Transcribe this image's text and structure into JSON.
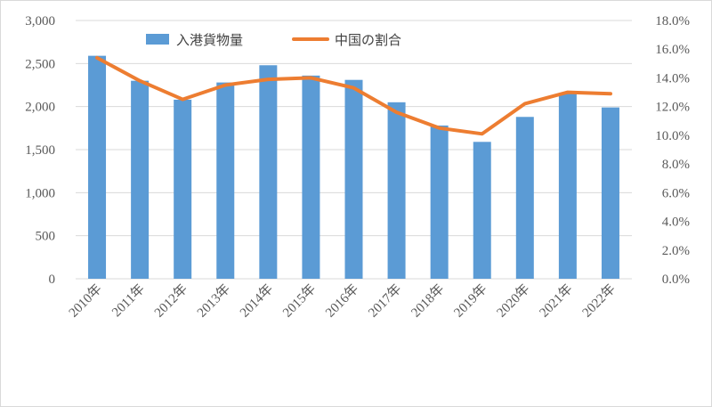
{
  "chart_data": {
    "type": "bar",
    "categories": [
      "2010年",
      "2011年",
      "2012年",
      "2013年",
      "2014年",
      "2015年",
      "2016年",
      "2017年",
      "2018年",
      "2019年",
      "2020年",
      "2021年",
      "2022年"
    ],
    "series": [
      {
        "name": "入港貨物量",
        "type": "bar",
        "axis": "left",
        "color": "#5b9bd5",
        "values": [
          2590,
          2300,
          2080,
          2280,
          2480,
          2360,
          2310,
          2050,
          1780,
          1590,
          1880,
          2150,
          1990
        ]
      },
      {
        "name": "中国の割合",
        "type": "line",
        "axis": "right",
        "color": "#ed7d31",
        "values": [
          15.4,
          13.8,
          12.5,
          13.5,
          13.9,
          14.0,
          13.3,
          11.6,
          10.5,
          10.1,
          12.2,
          13.0,
          12.9
        ]
      }
    ],
    "ylim_left": [
      0,
      3000
    ],
    "yticks_left": [
      "0",
      "500",
      "1,000",
      "1,500",
      "2,000",
      "2,500",
      "3,000"
    ],
    "ylim_right": [
      0,
      18
    ],
    "yticks_right": [
      "0.0%",
      "2.0%",
      "4.0%",
      "6.0%",
      "8.0%",
      "10.0%",
      "12.0%",
      "14.0%",
      "16.0%",
      "18.0%"
    ],
    "grid": true,
    "legend": "top-left"
  }
}
